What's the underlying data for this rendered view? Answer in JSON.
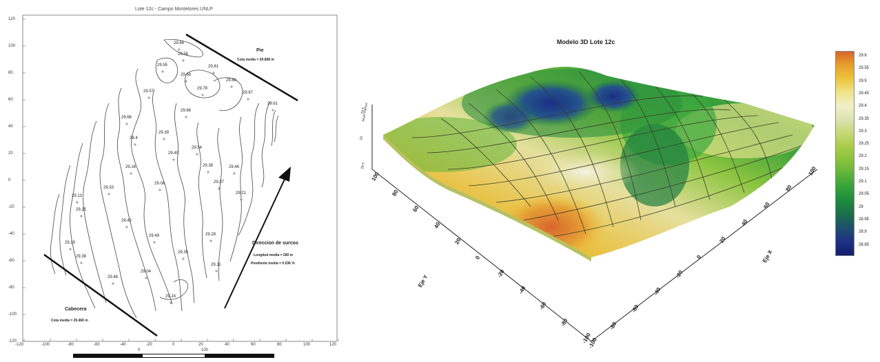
{
  "left_map": {
    "title": "Lote 12c - Campo Montelores UNLP",
    "y_ticks": [
      "120",
      "100",
      "80",
      "60",
      "40",
      "20",
      "0",
      "-20",
      "-40",
      "-60",
      "-80",
      "-100",
      "-120"
    ],
    "x_ticks": [
      "-120",
      "-100",
      "-80",
      "-60",
      "-40",
      "-20",
      "0",
      "20",
      "40",
      "60",
      "80",
      "100",
      "120"
    ],
    "pie_label": "Pie",
    "pie_cota": "Cota media = 29.898 m",
    "cabecera_label": "Cabecera",
    "cabecera_cota": "Cota media = 29.460 m",
    "direccion_label": "Direccion de surcos",
    "longitud": "Longitud media = 280 m",
    "pendiente": "Pendiente media = 0.036 %",
    "spot_values": [
      "29.66",
      "29.56",
      "29.81",
      "29.88",
      "29.67",
      "29.61",
      "29.55",
      "29.78",
      "29.68",
      "29.57",
      "29.66",
      "29.4",
      "29.39",
      "29.68",
      "29.54",
      "29.49",
      "29.38",
      "29.46",
      "29.21",
      "29.37",
      "29.08",
      "29.16",
      "29.33",
      "29.13",
      "29.25",
      "29.19",
      "29.38",
      "29.42",
      "29.49",
      "29.35",
      "29.28",
      "29.11",
      "29.04",
      "29.24",
      "29.48"
    ]
  },
  "right_model": {
    "title": "Modelo 3D Lote 12c",
    "z_axis_label": "Nivel metros",
    "colorbar_ticks": [
      "29.6",
      "29.55",
      "29.5",
      "29.45",
      "29.4",
      "29.35",
      "29.3",
      "29.25",
      "29.2",
      "29.15",
      "29.1",
      "29.05",
      "29",
      "28.95",
      "28.9",
      "28.85"
    ],
    "colorbar_colors": [
      "#d9652a",
      "#e8a02c",
      "#ecc43a",
      "#eee48a",
      "#f1f0c8",
      "#dbe3b0",
      "#c6d774",
      "#a9cc4a",
      "#88c23c",
      "#5fb33a",
      "#34a23a",
      "#1d8a3c",
      "#1a6e48",
      "#1f4f6e",
      "#1d3185",
      "#121f6b"
    ],
    "z_ticks": [
      "29.5",
      "29",
      "28.5"
    ],
    "x_axis_ticks": [
      "100",
      "80",
      "60",
      "40",
      "20",
      "0",
      "-20",
      "-40",
      "-60",
      "-80",
      "-100"
    ],
    "y_axis_ticks": [
      "-100",
      "-80",
      "-60",
      "-40",
      "-20",
      "0",
      "20",
      "40",
      "60",
      "80",
      "100"
    ],
    "x_axis_label": "Eje Y",
    "y_axis_label": "Eje X"
  },
  "scale_bars": {
    "left": [
      "0",
      "100"
    ],
    "right": [
      "0",
      "100"
    ]
  }
}
